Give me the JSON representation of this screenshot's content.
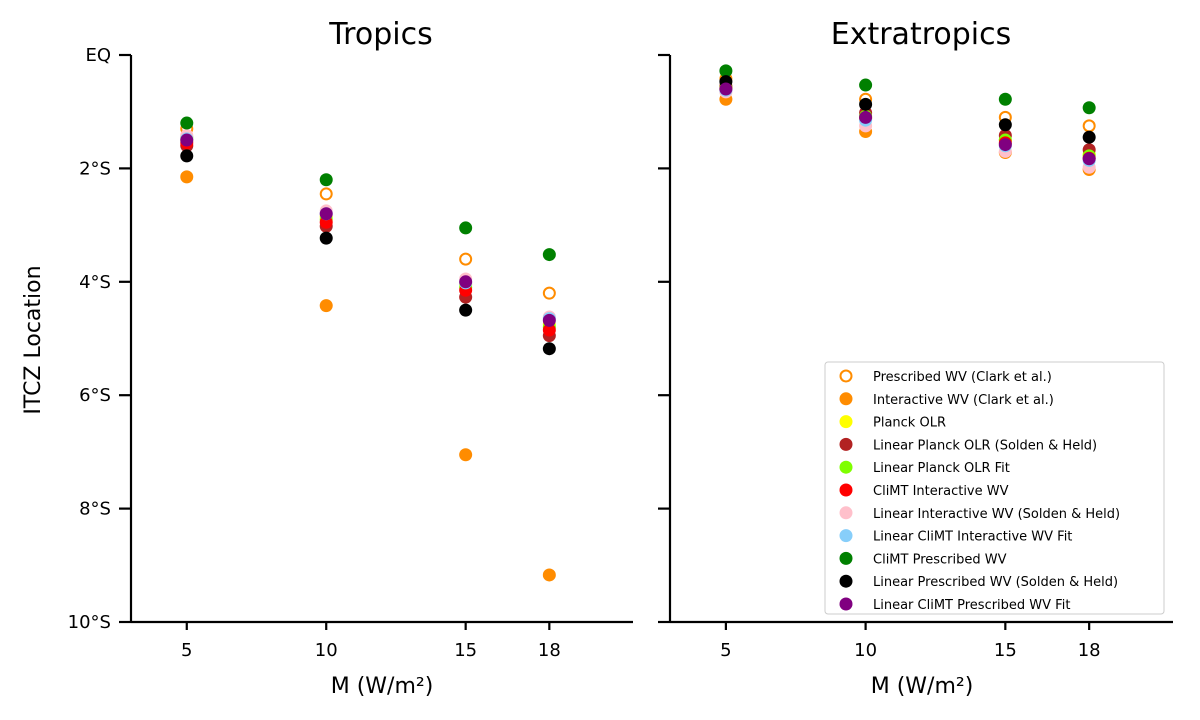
{
  "chart_data": [
    {
      "type": "scatter",
      "title": "Tropics",
      "xlabel": "M (W/m²)",
      "ylabel": "ITCZ Location",
      "x_ticks": [
        5,
        10,
        15,
        18
      ],
      "x_tick_labels": [
        "5",
        "10",
        "15",
        "18"
      ],
      "y_ticks": [
        0,
        -2,
        -4,
        -6,
        -8,
        -10
      ],
      "y_tick_labels": [
        "EQ",
        "2°S",
        "4°S",
        "6°S",
        "8°S",
        "10°S"
      ],
      "xlim": [
        3,
        21
      ],
      "ylim": [
        -10,
        0
      ],
      "grid": false,
      "series": [
        {
          "name": "Prescribed WV (Clark et al.)",
          "color": "#ff8c00",
          "filled": false,
          "x": [
            5,
            10,
            15,
            18
          ],
          "y": [
            -1.3,
            -2.45,
            -3.6,
            -4.2
          ]
        },
        {
          "name": "Interactive WV (Clark et al.)",
          "color": "#ff8c00",
          "filled": true,
          "x": [
            5,
            10,
            15,
            18
          ],
          "y": [
            -2.15,
            -4.42,
            -7.05,
            -9.17
          ]
        },
        {
          "name": "Planck OLR",
          "color": "#ffff00",
          "filled": true,
          "x": [
            5,
            10,
            15,
            18
          ],
          "y": [
            -1.5,
            -2.85,
            -4.05,
            -4.75
          ]
        },
        {
          "name": "Linear Planck OLR (Solden & Held)",
          "color": "#b22222",
          "filled": true,
          "x": [
            5,
            10,
            15,
            18
          ],
          "y": [
            -1.6,
            -3.02,
            -4.27,
            -4.95
          ]
        },
        {
          "name": "Linear Planck OLR Fit",
          "color": "#7fff00",
          "filled": true,
          "x": [
            5,
            10,
            15,
            18
          ],
          "y": [
            -1.45,
            -2.9,
            -4.1,
            -4.8
          ]
        },
        {
          "name": "CliMT Interactive WV",
          "color": "#ff0000",
          "filled": true,
          "x": [
            5,
            10,
            15,
            18
          ],
          "y": [
            -1.55,
            -2.95,
            -4.15,
            -4.85
          ]
        },
        {
          "name": "Linear Interactive WV (Solden & Held)",
          "color": "#ffc0cb",
          "filled": true,
          "x": [
            5,
            10,
            15,
            18
          ],
          "y": [
            -1.42,
            -2.75,
            -3.95,
            -4.62
          ]
        },
        {
          "name": "Linear CliMT Interactive WV Fit",
          "color": "#87cefa",
          "filled": true,
          "x": [
            5,
            10,
            15,
            18
          ],
          "y": [
            -1.48,
            -2.8,
            -4.02,
            -4.65
          ]
        },
        {
          "name": "CliMT Prescribed WV",
          "color": "#008000",
          "filled": true,
          "x": [
            5,
            10,
            15,
            18
          ],
          "y": [
            -1.2,
            -2.2,
            -3.05,
            -3.52
          ]
        },
        {
          "name": "Linear Prescribed WV (Solden & Held)",
          "color": "#000000",
          "filled": true,
          "x": [
            5,
            10,
            15,
            18
          ],
          "y": [
            -1.78,
            -3.23,
            -4.5,
            -5.18
          ]
        },
        {
          "name": "Linear CliMT Prescribed WV Fit",
          "color": "#800080",
          "filled": true,
          "x": [
            5,
            10,
            15,
            18
          ],
          "y": [
            -1.5,
            -2.8,
            -4.0,
            -4.68
          ]
        }
      ]
    },
    {
      "type": "scatter",
      "title": "Extratropics",
      "xlabel": "M (W/m²)",
      "ylabel": "",
      "x_ticks": [
        5,
        10,
        15,
        18
      ],
      "x_tick_labels": [
        "5",
        "10",
        "15",
        "18"
      ],
      "y_ticks": [
        0,
        -2,
        -4,
        -6,
        -8,
        -10
      ],
      "y_tick_labels": [
        "",
        "",
        "",
        "",
        "",
        ""
      ],
      "xlim": [
        3,
        21
      ],
      "ylim": [
        -10,
        0
      ],
      "grid": false,
      "legend_position": "lower-right",
      "series": [
        {
          "name": "Prescribed WV (Clark et al.)",
          "color": "#ff8c00",
          "filled": false,
          "x": [
            5,
            10,
            15,
            18
          ],
          "y": [
            -0.42,
            -0.78,
            -1.1,
            -1.25
          ]
        },
        {
          "name": "Interactive WV (Clark et al.)",
          "color": "#ff8c00",
          "filled": true,
          "x": [
            5,
            10,
            15,
            18
          ],
          "y": [
            -0.78,
            -1.35,
            -1.72,
            -2.02
          ]
        },
        {
          "name": "Planck OLR",
          "color": "#ffff00",
          "filled": true,
          "x": [
            5,
            10,
            15,
            18
          ],
          "y": [
            -0.6,
            -1.1,
            -1.5,
            -1.75
          ]
        },
        {
          "name": "Linear Planck OLR (Solden & Held)",
          "color": "#b22222",
          "filled": true,
          "x": [
            5,
            10,
            15,
            18
          ],
          "y": [
            -0.55,
            -1.02,
            -1.42,
            -1.67
          ]
        },
        {
          "name": "Linear Planck OLR Fit",
          "color": "#7fff00",
          "filled": true,
          "x": [
            5,
            10,
            15,
            18
          ],
          "y": [
            -0.58,
            -1.08,
            -1.5,
            -1.78
          ]
        },
        {
          "name": "CliMT Interactive WV",
          "color": "#ff0000",
          "filled": true,
          "x": [
            5,
            10,
            15,
            18
          ],
          "y": [
            -0.6,
            -1.12,
            -1.55,
            -1.82
          ]
        },
        {
          "name": "Linear Interactive WV (Solden & Held)",
          "color": "#ffc0cb",
          "filled": true,
          "x": [
            5,
            10,
            15,
            18
          ],
          "y": [
            -0.65,
            -1.25,
            -1.7,
            -1.98
          ]
        },
        {
          "name": "Linear CliMT Interactive WV Fit",
          "color": "#87cefa",
          "filled": true,
          "x": [
            5,
            10,
            15,
            18
          ],
          "y": [
            -0.62,
            -1.15,
            -1.6,
            -1.86
          ]
        },
        {
          "name": "CliMT Prescribed WV",
          "color": "#008000",
          "filled": true,
          "x": [
            5,
            10,
            15,
            18
          ],
          "y": [
            -0.28,
            -0.53,
            -0.78,
            -0.93
          ]
        },
        {
          "name": "Linear Prescribed WV (Solden & Held)",
          "color": "#000000",
          "filled": true,
          "x": [
            5,
            10,
            15,
            18
          ],
          "y": [
            -0.47,
            -0.87,
            -1.23,
            -1.45
          ]
        },
        {
          "name": "Linear CliMT Prescribed WV Fit",
          "color": "#800080",
          "filled": true,
          "x": [
            5,
            10,
            15,
            18
          ],
          "y": [
            -0.6,
            -1.1,
            -1.58,
            -1.83
          ]
        }
      ]
    }
  ]
}
